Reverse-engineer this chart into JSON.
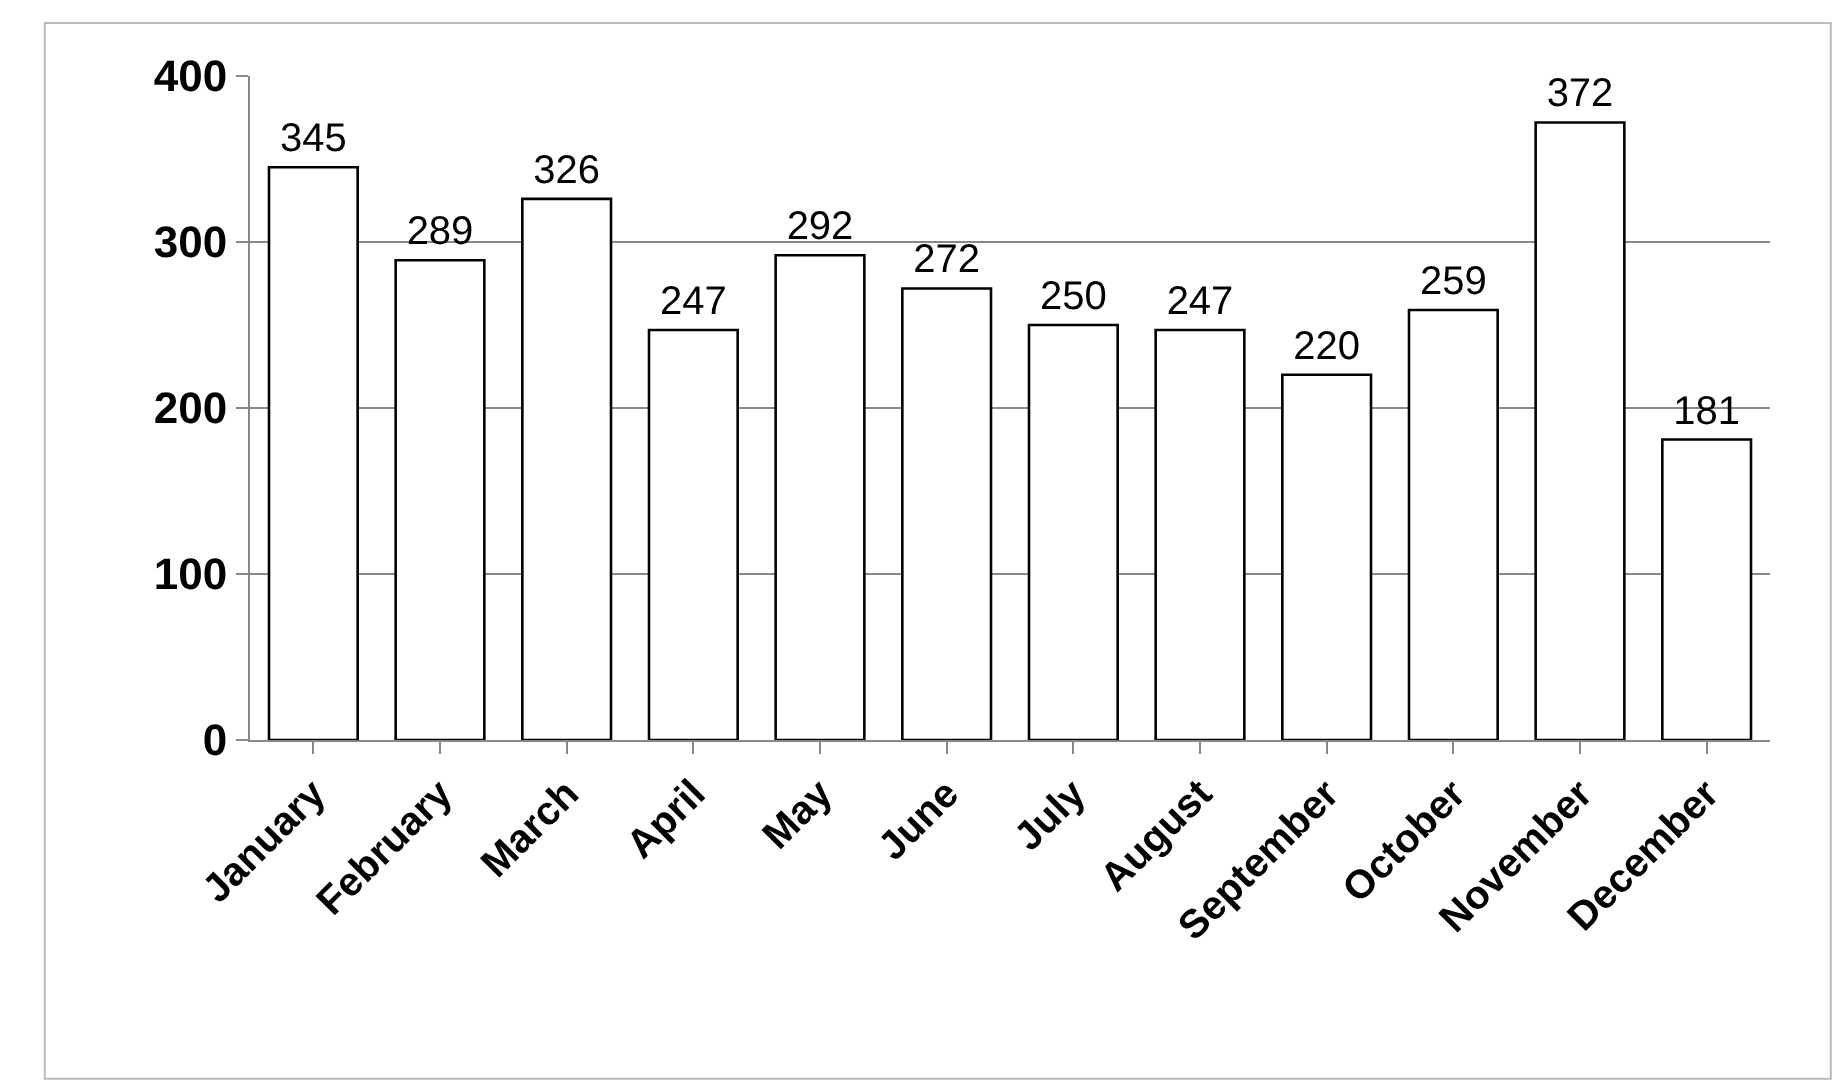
{
  "chart_data": {
    "type": "bar",
    "categories": [
      "January",
      "February",
      "March",
      "April",
      "May",
      "June",
      "July",
      "August",
      "September",
      "October",
      "November",
      "December"
    ],
    "values": [
      345,
      289,
      326,
      247,
      292,
      272,
      250,
      247,
      220,
      259,
      372,
      181
    ],
    "color": "#ffffff",
    "ylim": [
      0,
      400
    ],
    "yticks": [
      0,
      100,
      200,
      300,
      400
    ],
    "grid": "y",
    "data_labels": true,
    "legend": false
  }
}
